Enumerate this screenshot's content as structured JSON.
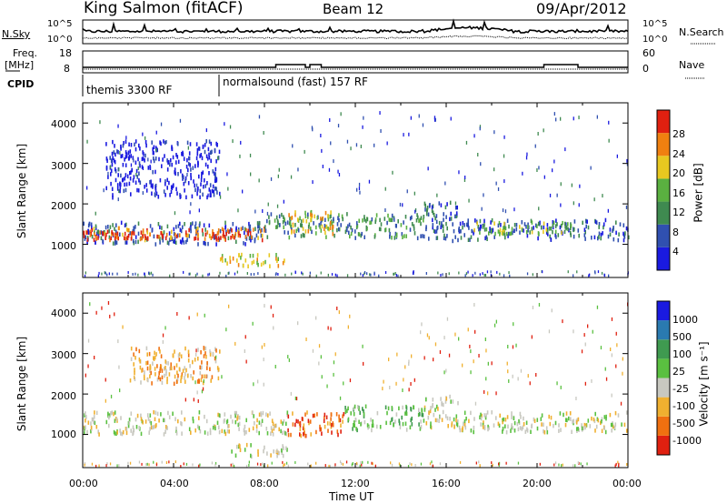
{
  "header": {
    "station": "King Salmon (fitACF)",
    "beam": "Beam 12",
    "date": "09/Apr/2012"
  },
  "noise_panel": {
    "left_label": "N.Sky",
    "right_label": "N.Search",
    "left_ticks": [
      "10^5",
      "10^0"
    ],
    "right_ticks": [
      "10^5",
      "10^0"
    ]
  },
  "freq_panel": {
    "left_label_1": "Freq.",
    "left_label_2": "[MHz]",
    "right_label": "Nave",
    "left_ticks": [
      "18",
      "8"
    ],
    "right_ticks": [
      "60",
      "0"
    ]
  },
  "cpid": {
    "label": "CPID",
    "modes": [
      {
        "name": "themis 3300 RF",
        "start_h": 0
      },
      {
        "name": "normalsound (fast) 157 RF",
        "start_h": 6
      }
    ]
  },
  "time_axis": {
    "label": "Time UT",
    "ticks": [
      "00:00",
      "04:00",
      "08:00",
      "12:00",
      "16:00",
      "20:00",
      "00:00"
    ],
    "range_h": [
      0,
      24
    ]
  },
  "power_panel": {
    "ylabel": "Slant Range [km]",
    "yticks": [
      "1000",
      "2000",
      "3000",
      "4000"
    ],
    "ylim": [
      180,
      4500
    ],
    "colorbar_label": "Power [dB]",
    "colorbar_ticks": [
      "4",
      "8",
      "12",
      "16",
      "20",
      "24",
      "28"
    ],
    "colors": [
      "#1a1ae0",
      "#3050b0",
      "#3f8a50",
      "#5ab040",
      "#e8c820",
      "#f08010",
      "#e02010"
    ]
  },
  "velocity_panel": {
    "ylabel": "Slant Range [km]",
    "yticks": [
      "1000",
      "2000",
      "3000",
      "4000"
    ],
    "ylim": [
      180,
      4500
    ],
    "colorbar_label": "Velocity [m s⁻¹]",
    "colorbar_ticks": [
      "1000",
      "500",
      "100",
      "25",
      "-25",
      "-100",
      "-500",
      "-1000"
    ],
    "colors": [
      "#1a1ae0",
      "#2a7ab0",
      "#3f9a50",
      "#5ac040",
      "#c8c8c0",
      "#f0b030",
      "#f07010",
      "#e02010"
    ]
  },
  "chart_data": {
    "type": "heatmap",
    "x_unit": "hours UT",
    "power_bands": [
      {
        "t0": 0.0,
        "t1": 8.0,
        "r0": 1050,
        "r1": 1600,
        "level": 1
      },
      {
        "t0": 0.0,
        "t1": 8.0,
        "r0": 1150,
        "r1": 1450,
        "level": 5
      },
      {
        "t0": 0.0,
        "t1": 7.5,
        "r0": 1180,
        "r1": 1350,
        "level": 6
      },
      {
        "t0": 6.0,
        "t1": 9.0,
        "r0": 500,
        "r1": 800,
        "level": 4
      },
      {
        "t0": 8.0,
        "t1": 15.0,
        "r0": 1200,
        "r1": 1800,
        "level": 2
      },
      {
        "t0": 9.0,
        "t1": 11.0,
        "r0": 1300,
        "r1": 1850,
        "level": 4
      },
      {
        "t0": 15.0,
        "t1": 16.5,
        "r0": 1100,
        "r1": 2100,
        "level": 1
      },
      {
        "t0": 16.5,
        "t1": 24.0,
        "r0": 1150,
        "r1": 1650,
        "level": 1
      },
      {
        "t0": 17.0,
        "t1": 21.5,
        "r0": 1300,
        "r1": 1600,
        "level": 3
      },
      {
        "t0": 1.0,
        "t1": 6.0,
        "r0": 2200,
        "r1": 3600,
        "level": 0
      }
    ],
    "velocity_bands": [
      {
        "t0": 0.0,
        "t1": 9.0,
        "r0": 1050,
        "r1": 1600,
        "level": 4
      },
      {
        "t0": 6.5,
        "t1": 9.0,
        "r0": 500,
        "r1": 800,
        "level": 4
      },
      {
        "t0": 9.0,
        "t1": 11.5,
        "r0": 1000,
        "r1": 1600,
        "level": 6
      },
      {
        "t0": 11.5,
        "t1": 15.0,
        "r0": 1150,
        "r1": 1750,
        "level": 3
      },
      {
        "t0": 15.0,
        "t1": 16.5,
        "r0": 1200,
        "r1": 2000,
        "level": 4
      },
      {
        "t0": 16.5,
        "t1": 24.0,
        "r0": 1100,
        "r1": 1600,
        "level": 4
      },
      {
        "t0": 2.0,
        "t1": 6.0,
        "r0": 2300,
        "r1": 3200,
        "level": 5
      }
    ]
  }
}
